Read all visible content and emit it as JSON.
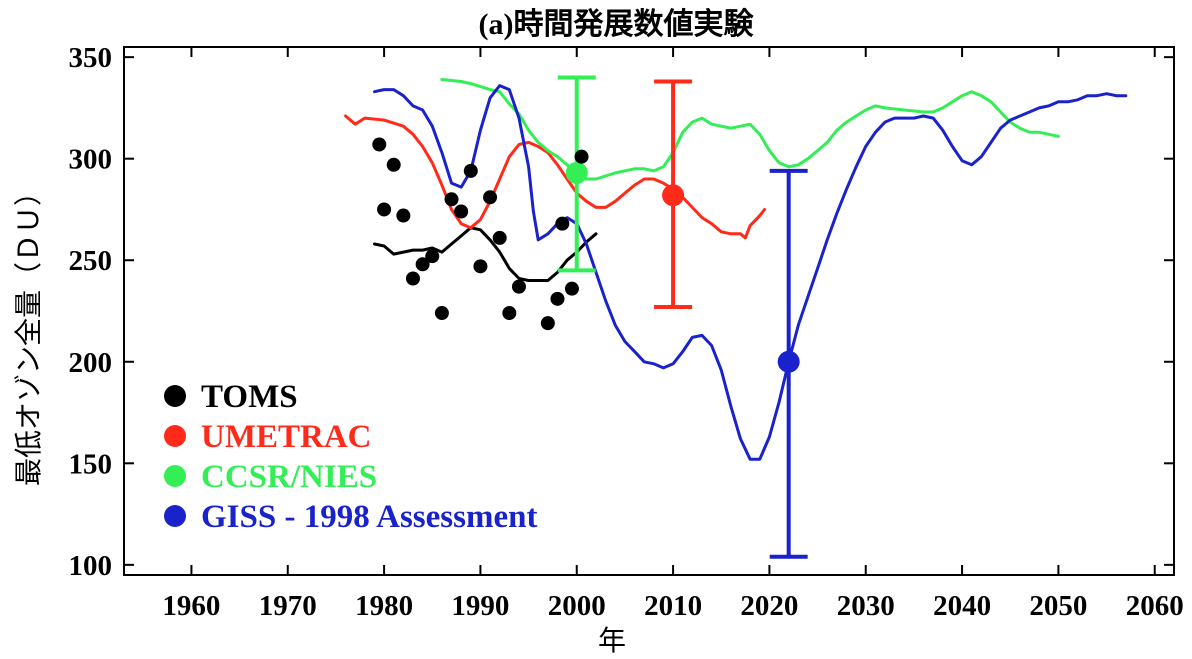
{
  "chart_data": {
    "type": "line",
    "title": "(a)時間発展数値実験",
    "xlabel": "年",
    "ylabel": "最低オゾン全量（ＤＵ）",
    "xlim": [
      1953,
      2062
    ],
    "ylim": [
      95,
      355
    ],
    "x_ticks": [
      1960,
      1970,
      1980,
      1990,
      2000,
      2010,
      2020,
      2030,
      2040,
      2050,
      2060
    ],
    "y_ticks": [
      100,
      150,
      200,
      250,
      300,
      350
    ],
    "grid": false,
    "legend_position": "bottom-left",
    "scatter": {
      "name": "TOMS",
      "color": "#000000",
      "points": [
        [
          1979.5,
          307
        ],
        [
          1980,
          275
        ],
        [
          1981,
          297
        ],
        [
          1982,
          272
        ],
        [
          1983,
          241
        ],
        [
          1984,
          248
        ],
        [
          1985,
          252
        ],
        [
          1986,
          224
        ],
        [
          1987,
          280
        ],
        [
          1988,
          274
        ],
        [
          1989,
          294
        ],
        [
          1990,
          247
        ],
        [
          1991,
          281
        ],
        [
          1992,
          261
        ],
        [
          1993,
          224
        ],
        [
          1994,
          237
        ],
        [
          1997,
          219
        ],
        [
          1998,
          231
        ],
        [
          1998.5,
          268
        ],
        [
          1999.5,
          236
        ],
        [
          2000.5,
          301
        ]
      ]
    },
    "series": [
      {
        "name": "TOMS",
        "color": "#000000",
        "data": [
          [
            1979,
            258
          ],
          [
            1980,
            257
          ],
          [
            1981,
            253
          ],
          [
            1982,
            254
          ],
          [
            1983,
            255
          ],
          [
            1984,
            255
          ],
          [
            1985,
            256
          ],
          [
            1986,
            254
          ],
          [
            1987,
            258
          ],
          [
            1988,
            262
          ],
          [
            1989,
            266
          ],
          [
            1990,
            265
          ],
          [
            1991,
            260
          ],
          [
            1992,
            254
          ],
          [
            1993,
            246
          ],
          [
            1994,
            241
          ],
          [
            1995,
            240
          ],
          [
            1996,
            240
          ],
          [
            1997,
            240
          ],
          [
            1998,
            244
          ],
          [
            1999,
            250
          ],
          [
            2000,
            254
          ],
          [
            2001,
            259
          ],
          [
            2002,
            263
          ]
        ]
      },
      {
        "name": "UMETRAC",
        "color": "#ff2a1a",
        "data": [
          [
            1976,
            321
          ],
          [
            1977,
            317
          ],
          [
            1978,
            320
          ],
          [
            1980,
            319
          ],
          [
            1982,
            316
          ],
          [
            1983,
            312
          ],
          [
            1984,
            306
          ],
          [
            1985,
            298
          ],
          [
            1986,
            287
          ],
          [
            1987,
            275
          ],
          [
            1988,
            268
          ],
          [
            1989,
            266
          ],
          [
            1990,
            270
          ],
          [
            1991,
            279
          ],
          [
            1992,
            290
          ],
          [
            1993,
            301
          ],
          [
            1994,
            307
          ],
          [
            1995,
            308
          ],
          [
            1996,
            306
          ],
          [
            1997,
            303
          ],
          [
            1998,
            297
          ],
          [
            1999,
            290
          ],
          [
            2000,
            283
          ],
          [
            2001,
            279
          ],
          [
            2002,
            276
          ],
          [
            2003,
            276
          ],
          [
            2004,
            279
          ],
          [
            2005,
            283
          ],
          [
            2006,
            287
          ],
          [
            2007,
            290
          ],
          [
            2008,
            290
          ],
          [
            2009,
            288
          ],
          [
            2010,
            285
          ],
          [
            2011,
            281
          ],
          [
            2012,
            276
          ],
          [
            2013,
            271
          ],
          [
            2014,
            268
          ],
          [
            2015,
            264
          ],
          [
            2016,
            263
          ],
          [
            2017,
            263
          ],
          [
            2017.5,
            261
          ],
          [
            2018,
            267
          ],
          [
            2019,
            272
          ],
          [
            2019.5,
            275
          ]
        ]
      },
      {
        "name": "CCSR/NIES",
        "color": "#33ee55",
        "data": [
          [
            1986,
            339
          ],
          [
            1988,
            338
          ],
          [
            1989,
            337
          ],
          [
            1991,
            334
          ],
          [
            1992,
            333
          ],
          [
            1993,
            327
          ],
          [
            1994,
            322
          ],
          [
            1995,
            314
          ],
          [
            1996,
            308
          ],
          [
            1997,
            304
          ],
          [
            1998,
            301
          ],
          [
            1999,
            297
          ],
          [
            2000,
            293
          ],
          [
            2001,
            290
          ],
          [
            2002,
            290
          ],
          [
            2004,
            293
          ],
          [
            2006,
            295
          ],
          [
            2007,
            295
          ],
          [
            2008,
            294
          ],
          [
            2009,
            296
          ],
          [
            2010,
            303
          ],
          [
            2011,
            313
          ],
          [
            2012,
            318
          ],
          [
            2013,
            320
          ],
          [
            2014,
            317
          ],
          [
            2016,
            315
          ],
          [
            2018,
            317
          ],
          [
            2019,
            312
          ],
          [
            2020,
            304
          ],
          [
            2021,
            298
          ],
          [
            2022,
            296
          ],
          [
            2023,
            297
          ],
          [
            2024,
            300
          ],
          [
            2025,
            304
          ],
          [
            2026,
            308
          ],
          [
            2027,
            314
          ],
          [
            2028,
            318
          ],
          [
            2029,
            321
          ],
          [
            2030,
            324
          ],
          [
            2031,
            326
          ],
          [
            2032,
            325
          ],
          [
            2034,
            324
          ],
          [
            2036,
            323
          ],
          [
            2037,
            323
          ],
          [
            2038,
            325
          ],
          [
            2039,
            328
          ],
          [
            2040,
            331
          ],
          [
            2041,
            333
          ],
          [
            2042,
            331
          ],
          [
            2043,
            328
          ],
          [
            2044,
            323
          ],
          [
            2045,
            318
          ],
          [
            2046,
            315
          ],
          [
            2047,
            313
          ],
          [
            2048,
            313
          ],
          [
            2049,
            312
          ],
          [
            2050,
            311
          ]
        ]
      },
      {
        "name": "GISS - 1998 Assessment",
        "color": "#1a22cc",
        "data": [
          [
            1979,
            333
          ],
          [
            1980,
            334
          ],
          [
            1981,
            334
          ],
          [
            1982,
            331
          ],
          [
            1983,
            326
          ],
          [
            1984,
            324
          ],
          [
            1985,
            316
          ],
          [
            1986,
            303
          ],
          [
            1987,
            288
          ],
          [
            1988,
            286
          ],
          [
            1989,
            294
          ],
          [
            1990,
            314
          ],
          [
            1991,
            330
          ],
          [
            1992,
            336
          ],
          [
            1993,
            334
          ],
          [
            1994,
            320
          ],
          [
            1995,
            296
          ],
          [
            1995.5,
            274
          ],
          [
            1996,
            260
          ],
          [
            1997,
            263
          ],
          [
            1998,
            268
          ],
          [
            1999,
            271
          ],
          [
            2000,
            268
          ],
          [
            2001,
            258
          ],
          [
            2002,
            244
          ],
          [
            2003,
            230
          ],
          [
            2004,
            218
          ],
          [
            2005,
            210
          ],
          [
            2006,
            205
          ],
          [
            2007,
            200
          ],
          [
            2008,
            199
          ],
          [
            2009,
            197
          ],
          [
            2010,
            199
          ],
          [
            2011,
            205
          ],
          [
            2012,
            212
          ],
          [
            2013,
            213
          ],
          [
            2014,
            208
          ],
          [
            2015,
            196
          ],
          [
            2016,
            178
          ],
          [
            2017,
            162
          ],
          [
            2018,
            152
          ],
          [
            2019,
            152
          ],
          [
            2020,
            163
          ],
          [
            2021,
            180
          ],
          [
            2022,
            200
          ],
          [
            2023,
            218
          ],
          [
            2024,
            232
          ],
          [
            2025,
            246
          ],
          [
            2026,
            260
          ],
          [
            2027,
            273
          ],
          [
            2028,
            285
          ],
          [
            2029,
            296
          ],
          [
            2030,
            306
          ],
          [
            2031,
            313
          ],
          [
            2032,
            318
          ],
          [
            2033,
            320
          ],
          [
            2034,
            320
          ],
          [
            2035,
            320
          ],
          [
            2036,
            321
          ],
          [
            2037,
            320
          ],
          [
            2038,
            314
          ],
          [
            2039,
            306
          ],
          [
            2040,
            299
          ],
          [
            2041,
            297
          ],
          [
            2042,
            301
          ],
          [
            2043,
            308
          ],
          [
            2044,
            315
          ],
          [
            2045,
            319
          ],
          [
            2046,
            321
          ],
          [
            2047,
            323
          ],
          [
            2048,
            325
          ],
          [
            2049,
            326
          ],
          [
            2050,
            328
          ],
          [
            2051,
            328
          ],
          [
            2052,
            329
          ],
          [
            2053,
            331
          ],
          [
            2054,
            331
          ],
          [
            2055,
            332
          ],
          [
            2056,
            331
          ],
          [
            2057,
            331
          ]
        ]
      }
    ],
    "error_bars": [
      {
        "name": "CCSR/NIES",
        "color": "#33ee55",
        "x": 2000,
        "y": 293,
        "low": 245,
        "high": 340
      },
      {
        "name": "UMETRAC",
        "color": "#ff2a1a",
        "x": 2010,
        "y": 282,
        "low": 227,
        "high": 338
      },
      {
        "name": "GISS - 1998 Assessment",
        "color": "#1a22cc",
        "x": 2022,
        "y": 200,
        "low": 104,
        "high": 294
      }
    ],
    "legend": [
      {
        "label": "TOMS",
        "color": "#000000"
      },
      {
        "label": "UMETRAC",
        "color": "#ff2a1a"
      },
      {
        "label": "CCSR/NIES",
        "color": "#33ee55"
      },
      {
        "label": "GISS - 1998 Assessment",
        "color": "#1a22cc"
      }
    ]
  }
}
